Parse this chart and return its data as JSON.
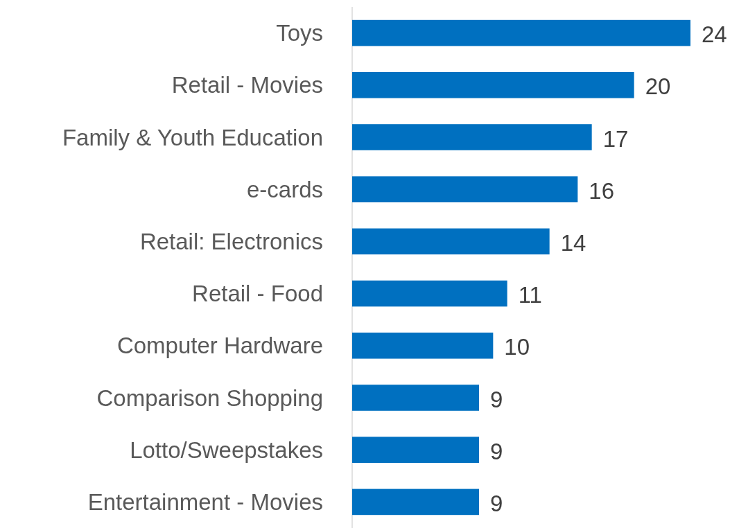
{
  "chart_data": {
    "type": "bar",
    "orientation": "horizontal",
    "categories": [
      "Toys",
      "Retail - Movies",
      "Family & Youth Education",
      "e-cards",
      "Retail: Electronics",
      "Retail - Food",
      "Computer Hardware",
      "Comparison Shopping",
      "Lotto/Sweepstakes",
      "Entertainment - Movies"
    ],
    "values": [
      24,
      20,
      17,
      16,
      14,
      11,
      10,
      9,
      9,
      9
    ],
    "color": "#0070c0",
    "data_labels": true
  }
}
